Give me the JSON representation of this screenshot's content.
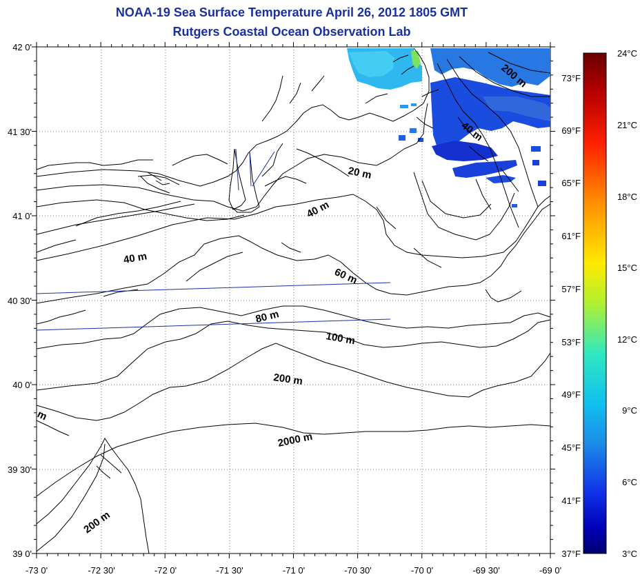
{
  "title": "NOAA-19 Sea Surface Temperature April 26, 2012 1805 GMT",
  "subtitle": "Rutgers Coastal Ocean Observation Lab",
  "lon_labels": [
    "-73 0'",
    "-72 30'",
    "-72 0'",
    "-71 30'",
    "-71 0'",
    "-70 30'",
    "-70 0'",
    "-69 30'",
    "-69 0'"
  ],
  "lat_labels": [
    "42 0'",
    "41 30'",
    "41 0'",
    "40 30'",
    "40 0'",
    "39 30'",
    "39 0'"
  ],
  "lon_values": [
    -73,
    -72.5,
    -72,
    -71.5,
    -71,
    -70.5,
    -70,
    -69.5,
    -69
  ],
  "lat_values": [
    42,
    41.5,
    41,
    40.5,
    40,
    39.5,
    39
  ],
  "contour_labels": [
    "20 m",
    "40 m",
    "40 m",
    "60 m",
    "80 m",
    "100 m",
    "200 m",
    "2000 m",
    "200 m",
    "200 m",
    "40 m",
    "m"
  ],
  "colorbar": {
    "celsius_range": [
      3,
      24
    ],
    "celsius_labels": [
      "24°C",
      "21°C",
      "18°C",
      "15°C",
      "12°C",
      "9°C",
      "6°C",
      "3°C"
    ],
    "fahrenheit_labels": [
      "73°F",
      "69°F",
      "65°F",
      "61°F",
      "57°F",
      "53°F",
      "49°F",
      "45°F",
      "41°F",
      "37°F"
    ],
    "colors": [
      "#7a0000",
      "#d00000",
      "#ff4a00",
      "#ffa000",
      "#ffee00",
      "#a8f040",
      "#30e0b0",
      "#00c8f0",
      "#1c8ce8",
      "#1034e0",
      "#0000b0",
      "#00007a"
    ]
  },
  "sst_colors": {
    "cyan": "#30c8f0",
    "light_blue": "#2898e8",
    "blue": "#1a4ce0",
    "deep_blue": "#1430d0"
  }
}
